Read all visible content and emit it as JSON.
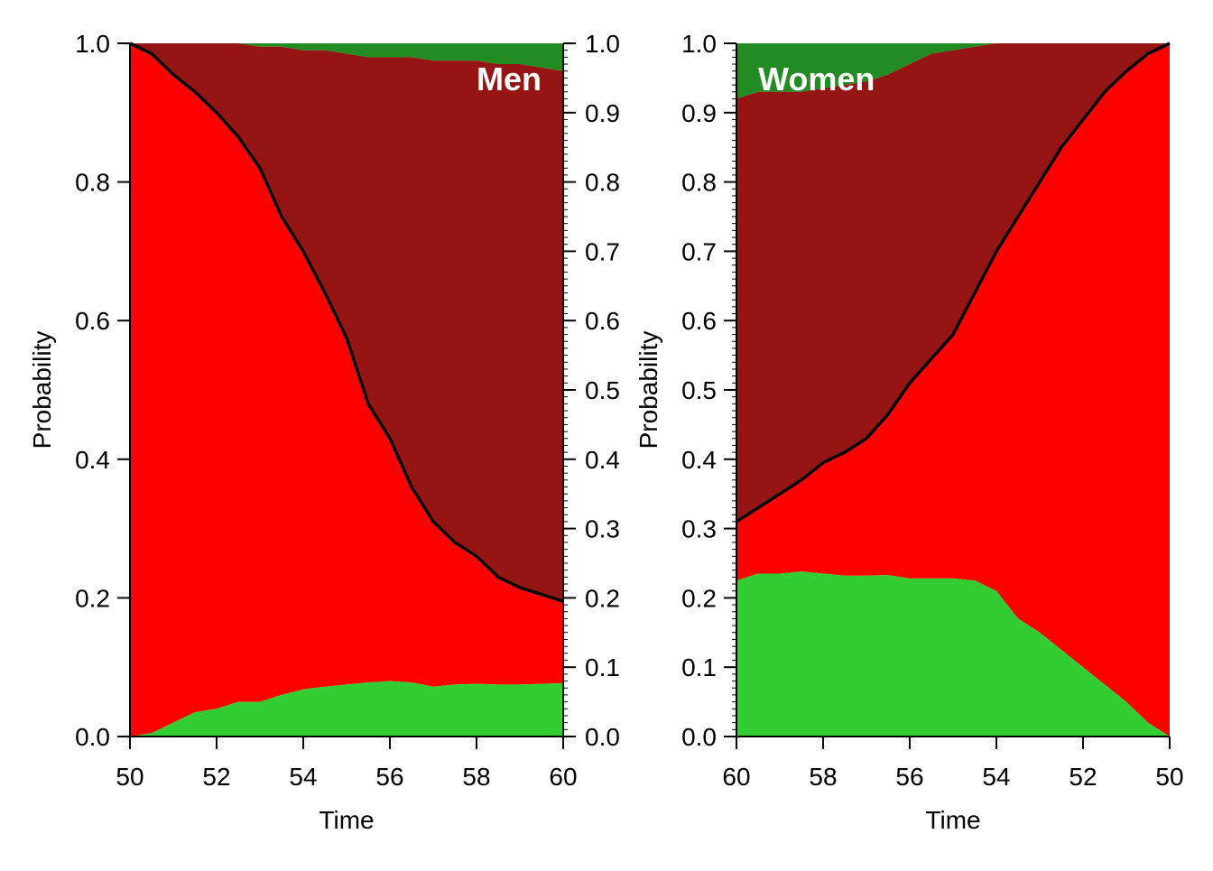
{
  "colors": {
    "bottom_band": "#33cc33",
    "middle_band": "#ff0000",
    "upper_band": "#951414",
    "top_band": "#228b22",
    "divider_line": "#000000"
  },
  "chart_data": [
    {
      "type": "area",
      "panel_label": "Men",
      "xlabel": "Time",
      "ylabel": "Probability",
      "xlim": [
        50,
        60
      ],
      "x_reversed": false,
      "ylim": [
        0,
        1
      ],
      "x_ticks": [
        "50",
        "52",
        "54",
        "56",
        "58",
        "60"
      ],
      "y_ticks": [
        "0.0",
        "0.2",
        "0.4",
        "0.6",
        "0.8",
        "1.0"
      ],
      "right_y_ticks": [
        "0.0",
        "0.1",
        "0.2",
        "0.3",
        "0.4",
        "0.5",
        "0.6",
        "0.7",
        "0.8",
        "0.9",
        "1.0"
      ],
      "x": [
        50,
        50.5,
        51,
        51.5,
        52,
        52.5,
        53,
        53.5,
        54,
        54.5,
        55,
        55.5,
        56,
        56.5,
        57,
        57.5,
        58,
        58.5,
        59,
        59.5,
        60
      ],
      "green": [
        0.0,
        0.005,
        0.02,
        0.035,
        0.04,
        0.05,
        0.05,
        0.06,
        0.068,
        0.072,
        0.075,
        0.078,
        0.08,
        0.078,
        0.072,
        0.075,
        0.076,
        0.075,
        0.075,
        0.076,
        0.077
      ],
      "line": [
        1.0,
        0.985,
        0.955,
        0.93,
        0.9,
        0.865,
        0.82,
        0.75,
        0.7,
        0.64,
        0.575,
        0.48,
        0.43,
        0.36,
        0.31,
        0.28,
        0.26,
        0.23,
        0.215,
        0.205,
        0.195
      ],
      "upper": [
        1.0,
        1.0,
        1.0,
        1.0,
        1.0,
        1.0,
        0.995,
        0.995,
        0.99,
        0.99,
        0.985,
        0.98,
        0.98,
        0.98,
        0.975,
        0.975,
        0.975,
        0.97,
        0.97,
        0.965,
        0.96
      ]
    },
    {
      "type": "area",
      "panel_label": "Women",
      "xlabel": "Time",
      "ylabel": "Probability",
      "xlim": [
        60,
        50
      ],
      "x_reversed": true,
      "ylim": [
        0,
        1
      ],
      "x_ticks": [
        "60",
        "58",
        "56",
        "54",
        "52",
        "50"
      ],
      "y_ticks": [
        "0.0",
        "0.1",
        "0.2",
        "0.3",
        "0.4",
        "0.5",
        "0.6",
        "0.7",
        "0.8",
        "0.9",
        "1.0"
      ],
      "right_y_ticks": [],
      "x": [
        60,
        59.5,
        59,
        58.5,
        58,
        57.5,
        57,
        56.5,
        56,
        55.5,
        55,
        54.5,
        54,
        53.5,
        53,
        52.5,
        52,
        51.5,
        51,
        50.5,
        50
      ],
      "green": [
        0.225,
        0.235,
        0.235,
        0.238,
        0.235,
        0.232,
        0.232,
        0.233,
        0.228,
        0.228,
        0.228,
        0.225,
        0.21,
        0.17,
        0.15,
        0.125,
        0.1,
        0.075,
        0.05,
        0.02,
        0.0
      ],
      "line": [
        0.31,
        0.33,
        0.35,
        0.37,
        0.395,
        0.41,
        0.43,
        0.465,
        0.51,
        0.545,
        0.58,
        0.64,
        0.7,
        0.75,
        0.8,
        0.85,
        0.89,
        0.93,
        0.96,
        0.985,
        1.0
      ],
      "upper": [
        0.92,
        0.93,
        0.93,
        0.93,
        0.935,
        0.94,
        0.945,
        0.955,
        0.97,
        0.985,
        0.99,
        0.995,
        1.0,
        1.0,
        1.0,
        1.0,
        1.0,
        1.0,
        1.0,
        1.0,
        1.0
      ]
    }
  ]
}
